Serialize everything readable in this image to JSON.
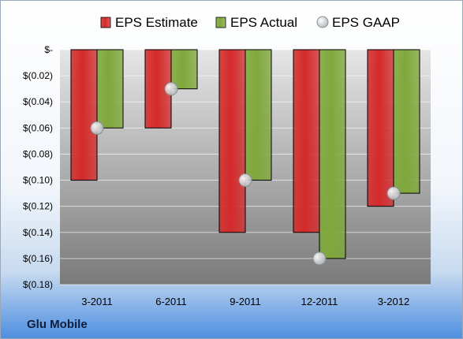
{
  "footer": {
    "company": "Glu Mobile"
  },
  "colors": {
    "estimate": "#d42a2a",
    "actual": "#7fa83a",
    "gaap": "#b8bcc0",
    "plot_top": "#e6e6e6",
    "plot_bottom": "#7a7a7a"
  },
  "chart_data": {
    "type": "bar",
    "categories": [
      "3-2011",
      "6-2011",
      "9-2011",
      "12-2011",
      "3-2012"
    ],
    "series": [
      {
        "name": "EPS Estimate",
        "values": [
          -0.1,
          -0.06,
          -0.14,
          -0.14,
          -0.12
        ]
      },
      {
        "name": "EPS Actual",
        "values": [
          -0.06,
          -0.03,
          -0.1,
          -0.16,
          -0.11
        ]
      },
      {
        "name": "EPS GAAP",
        "marker": "circle",
        "values": [
          -0.06,
          -0.03,
          -0.1,
          -0.16,
          -0.11
        ]
      }
    ],
    "ylim": [
      -0.18,
      0
    ],
    "yticks": [
      0,
      -0.02,
      -0.04,
      -0.06,
      -0.08,
      -0.1,
      -0.12,
      -0.14,
      -0.16,
      -0.18
    ],
    "ytick_labels": [
      "$-",
      "$(0.02)",
      "$(0.04)",
      "$(0.06)",
      "$(0.08)",
      "$(0.10)",
      "$(0.12)",
      "$(0.14)",
      "$(0.16)",
      "$(0.18)"
    ],
    "legend": "top",
    "grid": true
  }
}
